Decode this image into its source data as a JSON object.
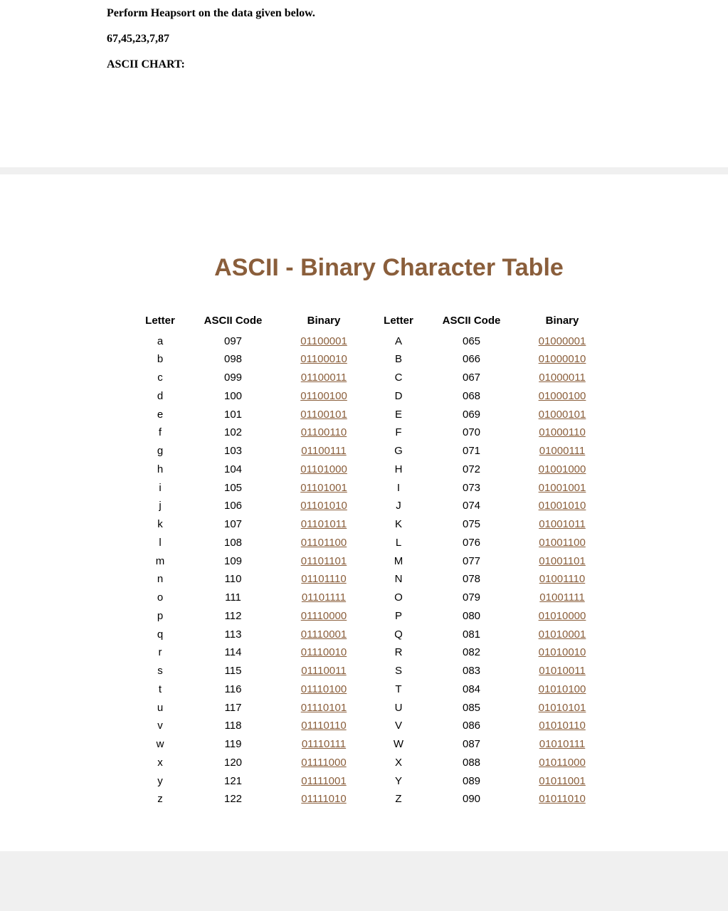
{
  "intro": {
    "line1": "Perform Heapsort on the data given below.",
    "line2": "67,45,23,7,87",
    "line3": "ASCII CHART:"
  },
  "title": {
    "text": "ASCII - Binary Character Table",
    "color": "#8a5e3b"
  },
  "headers": {
    "letter": "Letter",
    "code": "ASCII Code",
    "binary": "Binary"
  },
  "colors": {
    "binary_link": "#8a5e3b",
    "text": "#000000",
    "page_bg": "#ffffff",
    "body_font": "Verdana"
  },
  "rows": [
    {
      "l1": "a",
      "c1": "097",
      "b1": "01100001",
      "l2": "A",
      "c2": "065",
      "b2": "01000001"
    },
    {
      "l1": "b",
      "c1": "098",
      "b1": "01100010",
      "l2": "B",
      "c2": "066",
      "b2": "01000010"
    },
    {
      "l1": "c",
      "c1": "099",
      "b1": "01100011",
      "l2": "C",
      "c2": "067",
      "b2": "01000011"
    },
    {
      "l1": "d",
      "c1": "100",
      "b1": "01100100",
      "l2": "D",
      "c2": "068",
      "b2": "01000100"
    },
    {
      "l1": "e",
      "c1": "101",
      "b1": "01100101",
      "l2": "E",
      "c2": "069",
      "b2": "01000101"
    },
    {
      "l1": "f",
      "c1": "102",
      "b1": "01100110",
      "l2": "F",
      "c2": "070",
      "b2": "01000110"
    },
    {
      "l1": "g",
      "c1": "103",
      "b1": "01100111",
      "l2": "G",
      "c2": "071",
      "b2": "01000111"
    },
    {
      "l1": "h",
      "c1": "104",
      "b1": "01101000",
      "l2": "H",
      "c2": "072",
      "b2": "01001000"
    },
    {
      "l1": "i",
      "c1": "105",
      "b1": "01101001",
      "l2": "I",
      "c2": "073",
      "b2": "01001001"
    },
    {
      "l1": "j",
      "c1": "106",
      "b1": "01101010",
      "l2": "J",
      "c2": "074",
      "b2": "01001010"
    },
    {
      "l1": "k",
      "c1": "107",
      "b1": "01101011",
      "l2": "K",
      "c2": "075",
      "b2": "01001011"
    },
    {
      "l1": "l",
      "c1": "108",
      "b1": "01101100",
      "l2": "L",
      "c2": "076",
      "b2": "01001100"
    },
    {
      "l1": "m",
      "c1": "109",
      "b1": "01101101",
      "l2": "M",
      "c2": "077",
      "b2": "01001101"
    },
    {
      "l1": "n",
      "c1": "110",
      "b1": "01101110",
      "l2": "N",
      "c2": "078",
      "b2": "01001110"
    },
    {
      "l1": "o",
      "c1": "111",
      "b1": "01101111",
      "l2": "O",
      "c2": "079",
      "b2": "01001111"
    },
    {
      "l1": "p",
      "c1": "112",
      "b1": "01110000",
      "l2": "P",
      "c2": "080",
      "b2": "01010000"
    },
    {
      "l1": "q",
      "c1": "113",
      "b1": "01110001",
      "l2": "Q",
      "c2": "081",
      "b2": "01010001"
    },
    {
      "l1": "r",
      "c1": "114",
      "b1": "01110010",
      "l2": "R",
      "c2": "082",
      "b2": "01010010"
    },
    {
      "l1": "s",
      "c1": "115",
      "b1": "01110011",
      "l2": "S",
      "c2": "083",
      "b2": "01010011"
    },
    {
      "l1": "t",
      "c1": "116",
      "b1": "01110100",
      "l2": "T",
      "c2": "084",
      "b2": "01010100"
    },
    {
      "l1": "u",
      "c1": "117",
      "b1": "01110101",
      "l2": "U",
      "c2": "085",
      "b2": "01010101"
    },
    {
      "l1": "v",
      "c1": "118",
      "b1": "01110110",
      "l2": "V",
      "c2": "086",
      "b2": "01010110"
    },
    {
      "l1": "w",
      "c1": "119",
      "b1": "01110111",
      "l2": "W",
      "c2": "087",
      "b2": "01010111"
    },
    {
      "l1": "x",
      "c1": "120",
      "b1": "01111000",
      "l2": "X",
      "c2": "088",
      "b2": "01011000"
    },
    {
      "l1": "y",
      "c1": "121",
      "b1": "01111001",
      "l2": "Y",
      "c2": "089",
      "b2": "01011001"
    },
    {
      "l1": "z",
      "c1": "122",
      "b1": "01111010",
      "l2": "Z",
      "c2": "090",
      "b2": "01011010"
    }
  ]
}
